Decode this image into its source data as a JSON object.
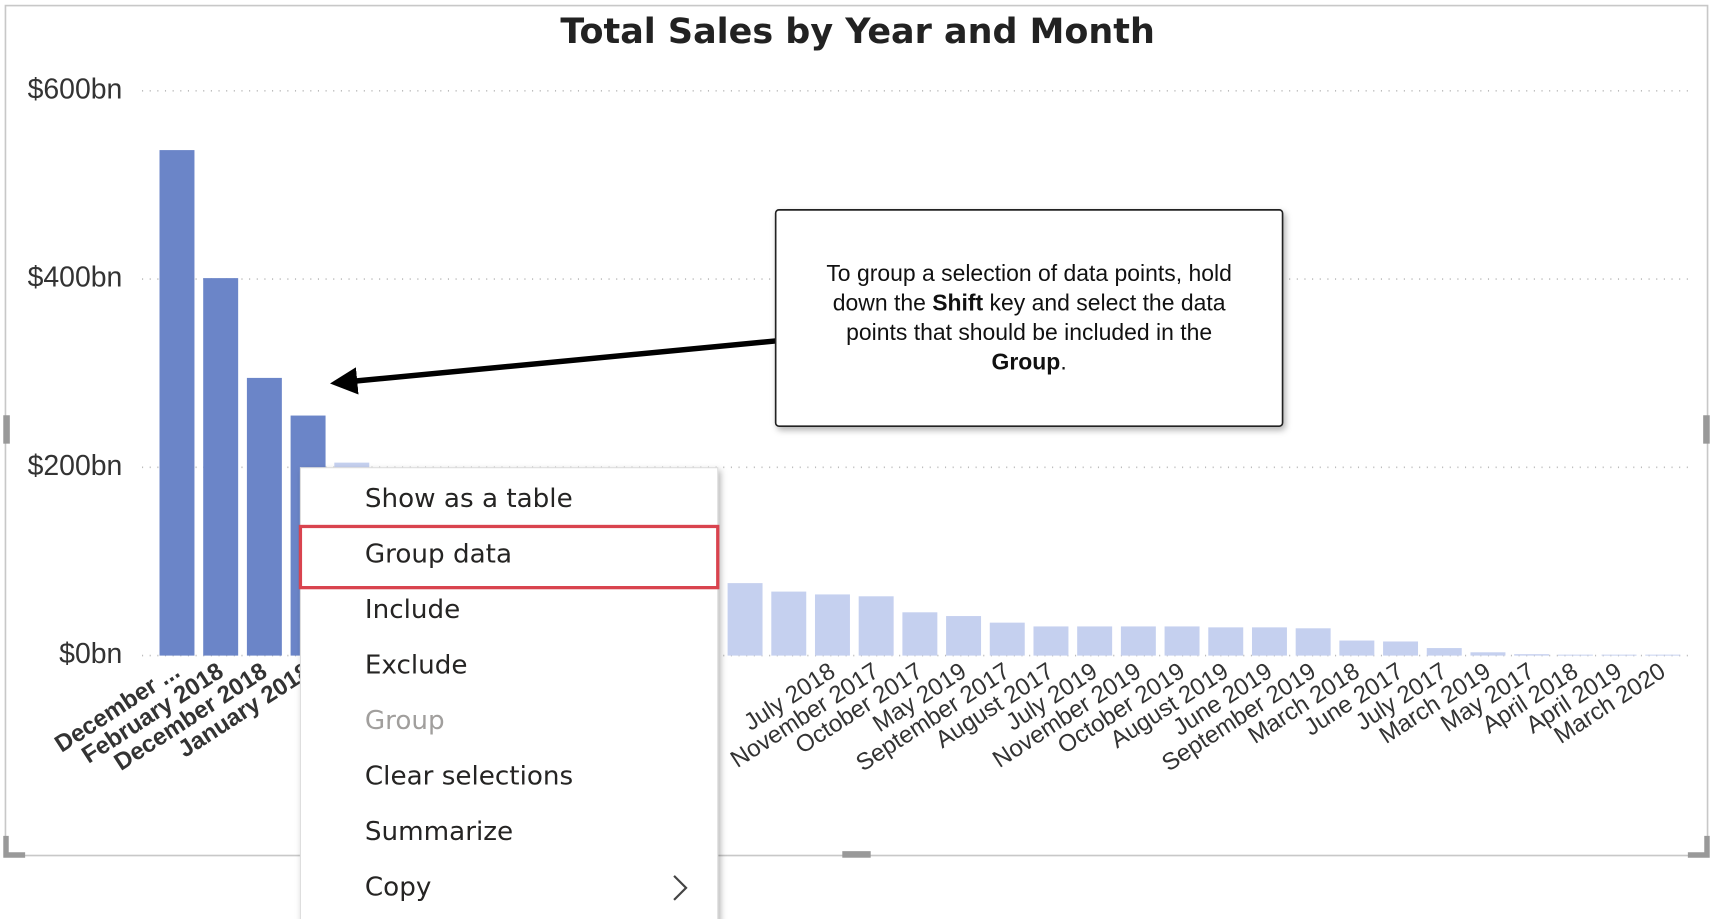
{
  "chart_data": {
    "type": "bar",
    "title": "Total Sales by Year and Month",
    "categories": [
      "December ...",
      "February 2018",
      "December 2018",
      "January 2018",
      null,
      null,
      null,
      null,
      null,
      null,
      null,
      null,
      null,
      null,
      null,
      "July 2018",
      "November 2017",
      "October 2017",
      "May 2019",
      "September 2017",
      "August 2017",
      "July 2019",
      "November 2019",
      "October 2019",
      "August 2019",
      "June 2019",
      "September 2019",
      "March 2018",
      "June 2017",
      "July 2017",
      "March 2019",
      "May 2017",
      "April 2018",
      "April 2019",
      "March 2020"
    ],
    "values": [
      537,
      401,
      295,
      255,
      205,
      null,
      null,
      null,
      null,
      null,
      null,
      null,
      null,
      77,
      68,
      65,
      63,
      46,
      42,
      35,
      31,
      31,
      31,
      31,
      30,
      30,
      29,
      16,
      15,
      8,
      3.5,
      1.5,
      1,
      1,
      1
    ],
    "color": "#c5d0ef",
    "selected_color": "#6b85c8",
    "selected_indices": [
      0,
      1,
      2,
      3
    ],
    "ylim": [
      0,
      600
    ],
    "yticks": [
      {
        "value": 0,
        "label": "$0bn"
      },
      {
        "value": 200,
        "label": "$200bn"
      },
      {
        "value": 400,
        "label": "$400bn"
      },
      {
        "value": 600,
        "label": "$600bn"
      }
    ],
    "grid": true
  },
  "callout": {
    "lines": [
      [
        {
          "text": "To group a selection of data points, hold",
          "bold": false
        }
      ],
      [
        {
          "text": "down the ",
          "bold": false
        },
        {
          "text": "Shift",
          "bold": true
        },
        {
          "text": " key and select the data",
          "bold": false
        }
      ],
      [
        {
          "text": "points that should be included in the",
          "bold": false
        }
      ],
      [
        {
          "text": "Group",
          "bold": true
        },
        {
          "text": ".",
          "bold": false
        }
      ]
    ]
  },
  "context_menu": {
    "items": [
      {
        "label": "Show as a table",
        "enabled": true,
        "highlighted": false,
        "submenu": false
      },
      {
        "label": "Group data",
        "enabled": true,
        "highlighted": true,
        "submenu": false
      },
      {
        "label": "Include",
        "enabled": true,
        "highlighted": false,
        "submenu": false
      },
      {
        "label": "Exclude",
        "enabled": true,
        "highlighted": false,
        "submenu": false
      },
      {
        "label": "Group",
        "enabled": false,
        "highlighted": false,
        "submenu": false
      },
      {
        "label": "Clear selections",
        "enabled": true,
        "highlighted": false,
        "submenu": false
      },
      {
        "label": "Summarize",
        "enabled": true,
        "highlighted": false,
        "submenu": false
      },
      {
        "label": "Copy",
        "enabled": true,
        "highlighted": false,
        "submenu": true
      }
    ]
  }
}
